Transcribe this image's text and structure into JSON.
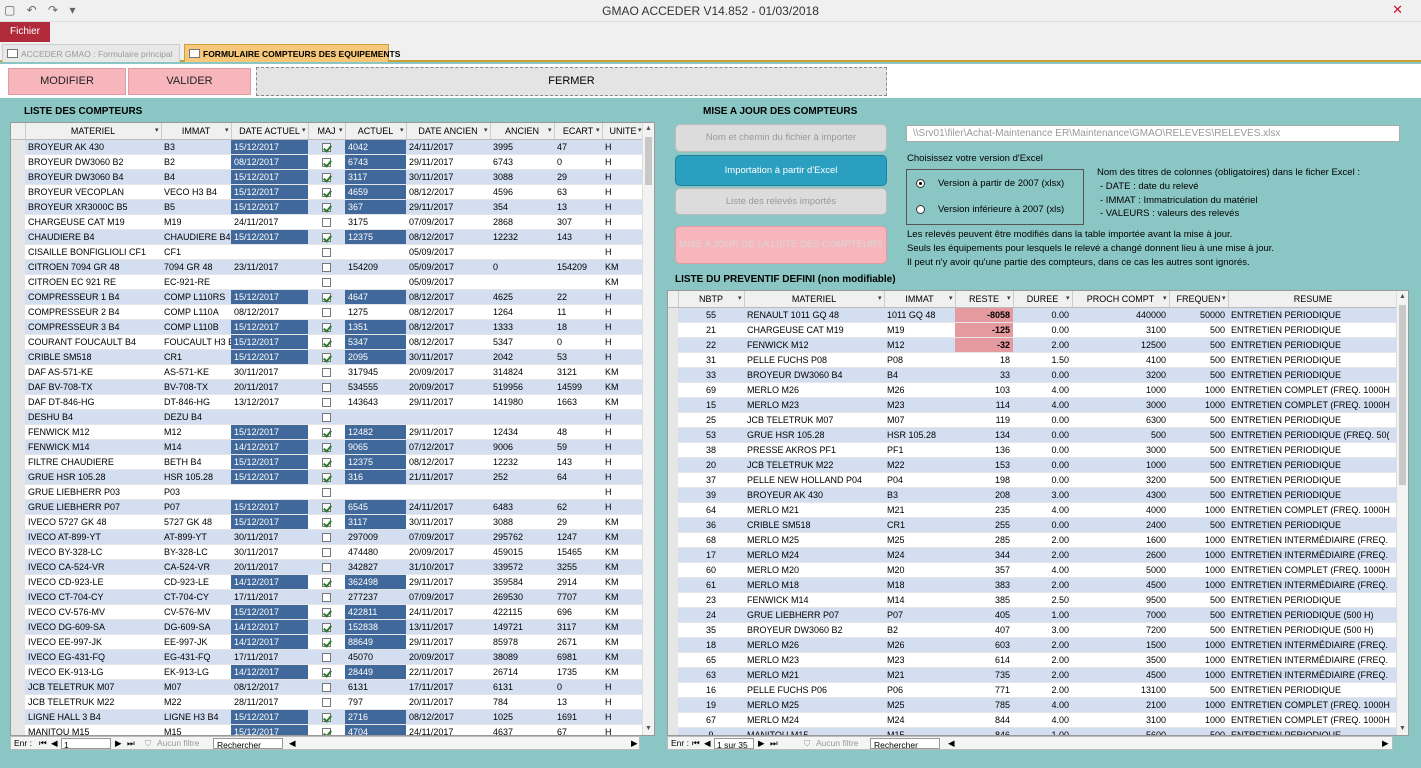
{
  "window": {
    "title": "GMAO ACCEDER V14.852 - 01/03/2018"
  },
  "ribbon": {
    "file_tab": "Fichier"
  },
  "tabs": [
    {
      "label": "ACCEDER GMAO : Formulaire principal"
    },
    {
      "label": "FORMULAIRE COMPTEURS DES EQUIPEMENTS"
    }
  ],
  "toolbar": {
    "modifier": "MODIFIER",
    "valider": "VALIDER",
    "fermer": "FERMER"
  },
  "left_section": {
    "title": "LISTE DES COMPTEURS"
  },
  "counters": {
    "columns": [
      "MATERIEL",
      "IMMAT",
      "DATE ACTUEL",
      "MAJ",
      "ACTUEL",
      "DATE ANCIEN",
      "ANCIEN",
      "ECART",
      "UNITE"
    ],
    "rows": [
      [
        "BROYEUR AK 430",
        "B3",
        "15/12/2017",
        true,
        "4042",
        "24/11/2017",
        "3995",
        "47",
        "H"
      ],
      [
        "BROYEUR DW3060 B2",
        "B2",
        "08/12/2017",
        true,
        "6743",
        "29/11/2017",
        "6743",
        "0",
        "H"
      ],
      [
        "BROYEUR DW3060 B4",
        "B4",
        "15/12/2017",
        true,
        "3117",
        "30/11/2017",
        "3088",
        "29",
        "H"
      ],
      [
        "BROYEUR VECOPLAN",
        "VECO H3 B4",
        "15/12/2017",
        true,
        "4659",
        "08/12/2017",
        "4596",
        "63",
        "H"
      ],
      [
        "BROYEUR XR3000C B5",
        "B5",
        "15/12/2017",
        true,
        "367",
        "29/11/2017",
        "354",
        "13",
        "H"
      ],
      [
        "CHARGEUSE CAT M19",
        "M19",
        "24/11/2017",
        false,
        "3175",
        "07/09/2017",
        "2868",
        "307",
        "H"
      ],
      [
        "CHAUDIERE B4",
        "CHAUDIERE B4",
        "15/12/2017",
        true,
        "12375",
        "08/12/2017",
        "12232",
        "143",
        "H"
      ],
      [
        "CISAILLE BONFIGLIOLI CF1",
        "CF1",
        "",
        false,
        "",
        "05/09/2017",
        "",
        "",
        "H"
      ],
      [
        "CITROEN 7094 GR 48",
        "7094 GR 48",
        "23/11/2017",
        false,
        "154209",
        "05/09/2017",
        "0",
        "154209",
        "KM"
      ],
      [
        "CITROEN EC 921 RE",
        "EC-921-RE",
        "",
        false,
        "",
        "05/09/2017",
        "",
        "",
        "KM"
      ],
      [
        "COMPRESSEUR 1 B4",
        "COMP L110RS",
        "15/12/2017",
        true,
        "4647",
        "08/12/2017",
        "4625",
        "22",
        "H"
      ],
      [
        "COMPRESSEUR 2 B4",
        "COMP L110A",
        "08/12/2017",
        false,
        "1275",
        "08/12/2017",
        "1264",
        "11",
        "H"
      ],
      [
        "COMPRESSEUR 3 B4",
        "COMP L110B",
        "15/12/2017",
        true,
        "1351",
        "08/12/2017",
        "1333",
        "18",
        "H"
      ],
      [
        "COURANT FOUCAULT B4",
        "FOUCAULT H3 B",
        "15/12/2017",
        true,
        "5347",
        "08/12/2017",
        "5347",
        "0",
        "H"
      ],
      [
        "CRIBLE SM518",
        "CR1",
        "15/12/2017",
        true,
        "2095",
        "30/11/2017",
        "2042",
        "53",
        "H"
      ],
      [
        "DAF AS-571-KE",
        "AS-571-KE",
        "30/11/2017",
        false,
        "317945",
        "20/09/2017",
        "314824",
        "3121",
        "KM"
      ],
      [
        "DAF BV-708-TX",
        "BV-708-TX",
        "20/11/2017",
        false,
        "534555",
        "20/09/2017",
        "519956",
        "14599",
        "KM"
      ],
      [
        "DAF DT-846-HG",
        "DT-846-HG",
        "13/12/2017",
        false,
        "143643",
        "29/11/2017",
        "141980",
        "1663",
        "KM"
      ],
      [
        "DESHU B4",
        "DEZU B4",
        "",
        false,
        "",
        "",
        "",
        "",
        "H"
      ],
      [
        "FENWICK M12",
        "M12",
        "15/12/2017",
        true,
        "12482",
        "29/11/2017",
        "12434",
        "48",
        "H"
      ],
      [
        "FENWICK M14",
        "M14",
        "14/12/2017",
        true,
        "9065",
        "07/12/2017",
        "9006",
        "59",
        "H"
      ],
      [
        "FILTRE CHAUDIERE",
        "BETH B4",
        "15/12/2017",
        true,
        "12375",
        "08/12/2017",
        "12232",
        "143",
        "H"
      ],
      [
        "GRUE HSR 105.28",
        "HSR 105.28",
        "15/12/2017",
        true,
        "316",
        "21/11/2017",
        "252",
        "64",
        "H"
      ],
      [
        "GRUE LIEBHERR P03",
        "P03",
        "",
        false,
        "",
        "",
        "",
        "",
        "H"
      ],
      [
        "GRUE LIEBHERR P07",
        "P07",
        "15/12/2017",
        true,
        "6545",
        "24/11/2017",
        "6483",
        "62",
        "H"
      ],
      [
        "IVECO 5727 GK 48",
        "5727 GK 48",
        "15/12/2017",
        true,
        "3117",
        "30/11/2017",
        "3088",
        "29",
        "KM"
      ],
      [
        "IVECO AT-899-YT",
        "AT-899-YT",
        "30/11/2017",
        false,
        "297009",
        "07/09/2017",
        "295762",
        "1247",
        "KM"
      ],
      [
        "IVECO BY-328-LC",
        "BY-328-LC",
        "30/11/2017",
        false,
        "474480",
        "20/09/2017",
        "459015",
        "15465",
        "KM"
      ],
      [
        "IVECO CA-524-VR",
        "CA-524-VR",
        "20/11/2017",
        false,
        "342827",
        "31/10/2017",
        "339572",
        "3255",
        "KM"
      ],
      [
        "IVECO CD-923-LE",
        "CD-923-LE",
        "14/12/2017",
        true,
        "362498",
        "29/11/2017",
        "359584",
        "2914",
        "KM"
      ],
      [
        "IVECO CT-704-CY",
        "CT-704-CY",
        "17/11/2017",
        false,
        "277237",
        "07/09/2017",
        "269530",
        "7707",
        "KM"
      ],
      [
        "IVECO CV-576-MV",
        "CV-576-MV",
        "15/12/2017",
        true,
        "422811",
        "24/11/2017",
        "422115",
        "696",
        "KM"
      ],
      [
        "IVECO DG-609-SA",
        "DG-609-SA",
        "14/12/2017",
        true,
        "152838",
        "13/11/2017",
        "149721",
        "3117",
        "KM"
      ],
      [
        "IVECO EE-997-JK",
        "EE-997-JK",
        "14/12/2017",
        true,
        "88649",
        "29/11/2017",
        "85978",
        "2671",
        "KM"
      ],
      [
        "IVECO EG-431-FQ",
        "EG-431-FQ",
        "17/11/2017",
        false,
        "45070",
        "20/09/2017",
        "38089",
        "6981",
        "KM"
      ],
      [
        "IVECO EK-913-LG",
        "EK-913-LG",
        "14/12/2017",
        true,
        "28449",
        "22/11/2017",
        "26714",
        "1735",
        "KM"
      ],
      [
        "JCB TELETRUK M07",
        "M07",
        "08/12/2017",
        false,
        "6131",
        "17/11/2017",
        "6131",
        "0",
        "H"
      ],
      [
        "JCB TELETRUK M22",
        "M22",
        "28/11/2017",
        false,
        "797",
        "20/11/2017",
        "784",
        "13",
        "H"
      ],
      [
        "LIGNE HALL 3 B4",
        "LIGNE H3 B4",
        "15/12/2017",
        true,
        "2716",
        "08/12/2017",
        "1025",
        "1691",
        "H"
      ],
      [
        "MANITOU M15",
        "M15",
        "15/12/2017",
        true,
        "4704",
        "24/11/2017",
        "4637",
        "67",
        "H"
      ]
    ]
  },
  "left_nav": {
    "record_label": "Enr :",
    "record_value": "1",
    "filter": "Aucun filtre",
    "search": "Rechercher"
  },
  "update_section": {
    "title": "MISE A JOUR DES COMPTEURS",
    "btn_file_path": "Nom et chemin du fichier à importer",
    "btn_import": "Importation à partir d'Excel",
    "btn_list_imported": "Liste des relevés importés",
    "btn_update_list": "MISE A JOUR DE LA LISTE DES COMPTEURS",
    "file_path": "\\\\Srv01\\filer\\Achat-Maintenance ER\\Maintenance\\GMAO\\RELEVES\\RELEVES.xlsx",
    "excel_version_prompt": "Choisissez votre version d'Excel",
    "radio_2007_plus": "Version à partir de 2007 (xlsx)",
    "radio_pre_2007": "Version inférieure à 2007 (xls)",
    "columns_info": [
      "Nom des titres de colonnes (obligatoires) dans le ficher Excel :",
      "- DATE : date du relevé",
      "- IMMAT : Immatriculation du matériel",
      "- VALEURS : valeurs des relevés"
    ],
    "notes": [
      "Les relevés peuvent être modifiés dans la table importée avant la mise à jour.",
      "Seuls les équipements pour lesquels le relevé a changé donnent lieu à une mise à jour.",
      "Il peut n'y avoir qu'une partie des compteurs, dans ce cas les autres sont ignorés."
    ]
  },
  "preventive_section": {
    "title": "LISTE DU PREVENTIF DEFINI (non modifiable)"
  },
  "preventive": {
    "columns": [
      "NBTP",
      "MATERIEL",
      "IMMAT",
      "RESTE",
      "DUREE",
      "PROCH COMPT",
      "FREQUEN",
      "RESUME"
    ],
    "rows": [
      [
        "55",
        "RENAULT 1011 GQ 48",
        "1011 GQ 48",
        "-8058",
        "0.00",
        "440000",
        "50000",
        "ENTRETIEN PERIODIQUE"
      ],
      [
        "21",
        "CHARGEUSE CAT M19",
        "M19",
        "-125",
        "0.00",
        "3100",
        "500",
        "ENTRETIEN PERIODIQUE"
      ],
      [
        "22",
        "FENWICK M12",
        "M12",
        "-32",
        "2.00",
        "12500",
        "500",
        "ENTRETIEN PERIODIQUE"
      ],
      [
        "31",
        "PELLE FUCHS P08",
        "P08",
        "18",
        "1.50",
        "4100",
        "500",
        "ENTRETIEN PERIODIQUE"
      ],
      [
        "33",
        "BROYEUR DW3060 B4",
        "B4",
        "33",
        "0.00",
        "3200",
        "500",
        "ENTRETIEN PERIODIQUE"
      ],
      [
        "69",
        "MERLO M26",
        "M26",
        "103",
        "4.00",
        "1000",
        "1000",
        "ENTRETIEN COMPLET (FREQ. 1000H"
      ],
      [
        "15",
        "MERLO M23",
        "M23",
        "114",
        "4.00",
        "3000",
        "1000",
        "ENTRETIEN COMPLET (FREQ. 1000H"
      ],
      [
        "25",
        "JCB TELETRUK M07",
        "M07",
        "119",
        "0.00",
        "6300",
        "500",
        "ENTRETIEN PERIODIQUE"
      ],
      [
        "53",
        "GRUE HSR 105.28",
        "HSR 105.28",
        "134",
        "0.00",
        "500",
        "500",
        "ENTRETIEN PERIODIQUE (FREQ. 50("
      ],
      [
        "38",
        "PRESSE AKROS PF1",
        "PF1",
        "136",
        "0.00",
        "3000",
        "500",
        "ENTRETIEN PERIODIQUE"
      ],
      [
        "20",
        "JCB TELETRUK M22",
        "M22",
        "153",
        "0.00",
        "1000",
        "500",
        "ENTRETIEN PERIODIQUE"
      ],
      [
        "37",
        "PELLE NEW HOLLAND P04",
        "P04",
        "198",
        "0.00",
        "3200",
        "500",
        "ENTRETIEN PERIODIQUE"
      ],
      [
        "39",
        "BROYEUR AK 430",
        "B3",
        "208",
        "3.00",
        "4300",
        "500",
        "ENTRETIEN PERIODIQUE"
      ],
      [
        "64",
        "MERLO M21",
        "M21",
        "235",
        "4.00",
        "4000",
        "1000",
        "ENTRETIEN COMPLET (FREQ. 1000H"
      ],
      [
        "36",
        "CRIBLE SM518",
        "CR1",
        "255",
        "0.00",
        "2400",
        "500",
        "ENTRETIEN PERIODIQUE"
      ],
      [
        "68",
        "MERLO M25",
        "M25",
        "285",
        "2.00",
        "1600",
        "1000",
        "ENTRETIEN INTERMÉDIAIRE (FREQ."
      ],
      [
        "17",
        "MERLO M24",
        "M24",
        "344",
        "2.00",
        "2600",
        "1000",
        "ENTRETIEN INTERMÉDIAIRE (FREQ."
      ],
      [
        "60",
        "MERLO M20",
        "M20",
        "357",
        "4.00",
        "5000",
        "1000",
        "ENTRETIEN COMPLET (FREQ. 1000H"
      ],
      [
        "61",
        "MERLO M18",
        "M18",
        "383",
        "2.00",
        "4500",
        "1000",
        "ENTRETIEN INTERMÉDIAIRE (FREQ."
      ],
      [
        "23",
        "FENWICK M14",
        "M14",
        "385",
        "2.50",
        "9500",
        "500",
        "ENTRETIEN PERIODIQUE"
      ],
      [
        "24",
        "GRUE LIEBHERR P07",
        "P07",
        "405",
        "1.00",
        "7000",
        "500",
        "ENTRETIEN PERIODIQUE (500 H)"
      ],
      [
        "35",
        "BROYEUR DW3060 B2",
        "B2",
        "407",
        "3.00",
        "7200",
        "500",
        "ENTRETIEN PERIODIQUE (500 H)"
      ],
      [
        "18",
        "MERLO M26",
        "M26",
        "603",
        "2.00",
        "1500",
        "1000",
        "ENTRETIEN INTERMÉDIAIRE (FREQ."
      ],
      [
        "65",
        "MERLO M23",
        "M23",
        "614",
        "2.00",
        "3500",
        "1000",
        "ENTRETIEN INTERMÉDIAIRE (FREQ."
      ],
      [
        "63",
        "MERLO M21",
        "M21",
        "735",
        "2.00",
        "4500",
        "1000",
        "ENTRETIEN INTERMÉDIAIRE (FREQ."
      ],
      [
        "16",
        "PELLE FUCHS P06",
        "P06",
        "771",
        "2.00",
        "13100",
        "500",
        "ENTRETIEN PERIODIQUE"
      ],
      [
        "19",
        "MERLO M25",
        "M25",
        "785",
        "4.00",
        "2100",
        "1000",
        "ENTRETIEN COMPLET (FREQ. 1000H"
      ],
      [
        "67",
        "MERLO M24",
        "M24",
        "844",
        "4.00",
        "3100",
        "1000",
        "ENTRETIEN COMPLET (FREQ. 1000H"
      ],
      [
        "9",
        "MANITOU M15",
        "M15",
        "846",
        "1.00",
        "5600",
        "500",
        "ENTRETIEN PERIODIQUE"
      ]
    ]
  },
  "right_nav": {
    "record_label": "Enr :",
    "record_value": "1 sur 35",
    "filter": "Aucun filtre",
    "search": "Rechercher"
  },
  "colors": {
    "background": "#8ac6c4",
    "highlight": "#41689a",
    "negative": "#e59aa0",
    "alt_row": "#d3def0",
    "pink_button": "#f7b6bc",
    "blue_button": "#2a9fc0"
  },
  "icons": [
    "save-icon",
    "undo-icon",
    "redo-icon",
    "close-icon",
    "form-icon",
    "checkbox-icon",
    "radio-icon",
    "scroll-arrow-icon",
    "nav-first-icon",
    "nav-prev-icon",
    "nav-next-icon",
    "nav-last-icon",
    "filter-icon"
  ]
}
